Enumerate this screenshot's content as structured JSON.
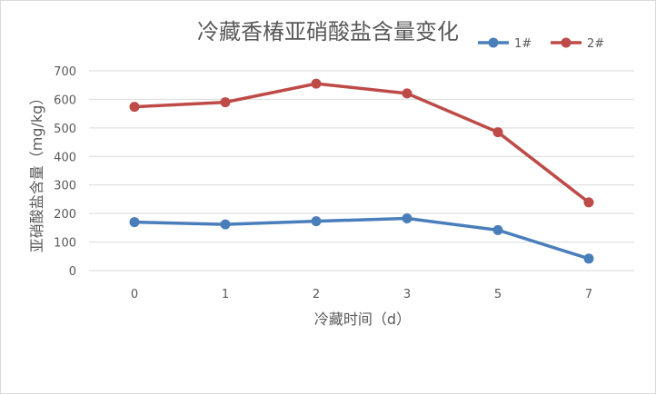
{
  "chart_data": {
    "type": "line",
    "title": "冷藏香椿亚硝酸盐含量变化",
    "xlabel": "冷藏时间（d）",
    "ylabel": "亚硝酸盐含量（mg/kg）",
    "categories": [
      "0",
      "1",
      "2",
      "3",
      "5",
      "7"
    ],
    "ylim": [
      0,
      700
    ],
    "yticks": [
      0,
      100,
      200,
      300,
      400,
      500,
      600,
      700
    ],
    "grid": true,
    "legend_position": "top-right",
    "series": [
      {
        "name": "1#",
        "color": "#4a7ebb",
        "values": [
          170,
          162,
          173,
          183,
          142,
          42
        ]
      },
      {
        "name": "2#",
        "color": "#be4b48",
        "values": [
          574,
          590,
          655,
          621,
          485,
          239
        ]
      }
    ]
  }
}
